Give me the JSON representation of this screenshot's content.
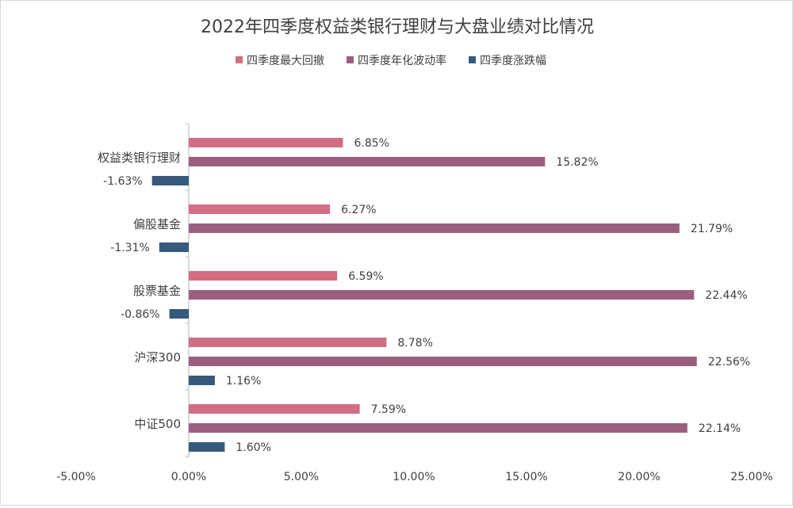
{
  "chart_data": {
    "type": "bar",
    "orientation": "horizontal",
    "title": "2022年四季度权益类银行理财与大盘业绩对比情况",
    "categories": [
      "权益类银行理财",
      "偏股基金",
      "股票基金",
      "沪深300",
      "中证500"
    ],
    "series": [
      {
        "name": "四季度最大回撤",
        "color": "#d26e84",
        "values": [
          6.85,
          6.27,
          6.59,
          8.78,
          7.59
        ],
        "labels": [
          "6.85%",
          "6.27%",
          "6.59%",
          "8.78%",
          "7.59%"
        ]
      },
      {
        "name": "四季度年化波动率",
        "color": "#9b5f7e",
        "values": [
          15.82,
          21.79,
          22.44,
          22.56,
          22.14
        ],
        "labels": [
          "15.82%",
          "21.79%",
          "22.44%",
          "22.56%",
          "22.14%"
        ]
      },
      {
        "name": "四季度涨跌幅",
        "color": "#355a7c",
        "values": [
          -1.63,
          -1.31,
          -0.86,
          1.16,
          1.6
        ],
        "labels": [
          "-1.63%",
          "-1.31%",
          "-0.86%",
          "1.16%",
          "1.60%"
        ]
      }
    ],
    "xlim": [
      -5,
      25
    ],
    "x_ticks": [
      -5,
      0,
      5,
      10,
      15,
      20,
      25
    ],
    "x_tick_labels": [
      "-5.00%",
      "0.00%",
      "5.00%",
      "10.00%",
      "15.00%",
      "20.00%",
      "25.00%"
    ],
    "grid": false,
    "legend_position": "top"
  }
}
